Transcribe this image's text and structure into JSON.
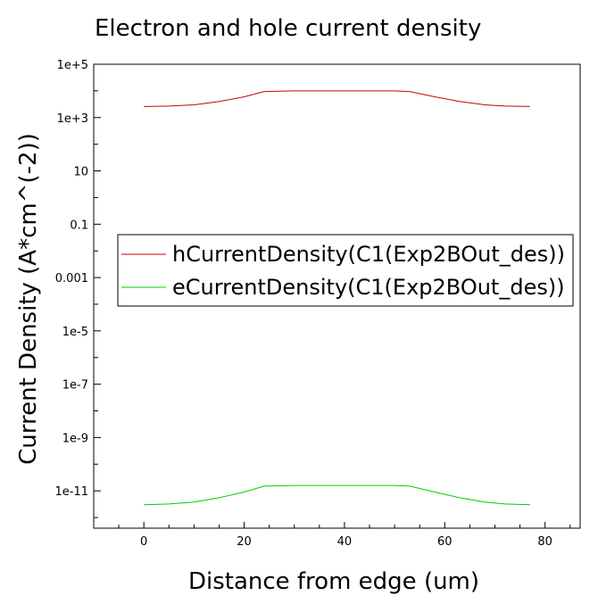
{
  "chart_data": {
    "type": "line",
    "title": "Electron and hole current density",
    "xlabel": "Distance from edge (um)",
    "ylabel": "Current Density (A*cm^(-2))",
    "xlim": [
      -10,
      87
    ],
    "ylim_log10": [
      -12.4,
      5
    ],
    "yscale": "log",
    "grid": false,
    "legend_position": "center-right",
    "x_ticks": [
      0,
      20,
      40,
      60,
      80
    ],
    "x_tick_labels": [
      "0",
      "20",
      "40",
      "60",
      "80"
    ],
    "y_ticks_log10": [
      5,
      3,
      1,
      -1,
      -3,
      -5,
      -7,
      -9,
      -11
    ],
    "y_tick_labels": [
      "1e+5",
      "1e+3",
      "10",
      "0.1",
      "0.001",
      "1e-5",
      "1e-7",
      "1e-9",
      "1e-11"
    ],
    "series": [
      {
        "name": "hCurrentDensity(C1(Exp2BOut_des))",
        "color": "#cc0000",
        "x": [
          0,
          5,
          10,
          15,
          20,
          24,
          30,
          40,
          50,
          53,
          58,
          63,
          68,
          72,
          77
        ],
        "y": [
          2600,
          2700,
          3000,
          4000,
          6000,
          9500,
          10000,
          10000,
          10000,
          9500,
          6000,
          4000,
          3000,
          2700,
          2600
        ]
      },
      {
        "name": "eCurrentDensity(C1(Exp2BOut_des))",
        "color": "#00cc00",
        "x": [
          0,
          5,
          10,
          15,
          20,
          24,
          30,
          40,
          50,
          53,
          58,
          63,
          68,
          72,
          77
        ],
        "y": [
          3e-12,
          3.2e-12,
          3.8e-12,
          5.5e-12,
          9e-12,
          1.5e-11,
          1.6e-11,
          1.6e-11,
          1.6e-11,
          1.5e-11,
          9e-12,
          5.5e-12,
          3.8e-12,
          3.2e-12,
          3e-12
        ]
      }
    ]
  }
}
